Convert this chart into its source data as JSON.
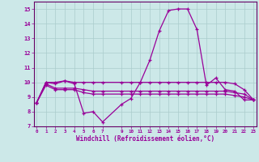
{
  "xlabel": "Windchill (Refroidissement éolien,°C)",
  "line_color": "#990099",
  "bg_color": "#cce8e8",
  "grid_color": "#aacccc",
  "axis_color": "#660066",
  "tick_color": "#990099",
  "xlim_min": -0.3,
  "xlim_max": 23.3,
  "ylim_min": 7,
  "ylim_max": 15.5,
  "yticks": [
    7,
    8,
    9,
    10,
    11,
    12,
    13,
    14,
    15
  ],
  "x": [
    0,
    1,
    2,
    3,
    4,
    5,
    6,
    7,
    9,
    10,
    11,
    12,
    13,
    14,
    15,
    16,
    17,
    18,
    19,
    20,
    21,
    22,
    23
  ],
  "y_main": [
    8.6,
    10.0,
    9.9,
    10.1,
    9.9,
    7.9,
    8.0,
    7.3,
    8.5,
    8.9,
    10.0,
    11.5,
    13.5,
    14.9,
    15.0,
    15.0,
    13.6,
    9.8,
    10.3,
    9.5,
    9.4,
    8.8,
    8.8
  ],
  "y_flat1": [
    8.6,
    10.0,
    10.0,
    10.1,
    10.0,
    10.0,
    10.0,
    10.0,
    10.0,
    10.0,
    10.0,
    10.0,
    10.0,
    10.0,
    10.0,
    10.0,
    10.0,
    10.0,
    10.0,
    10.0,
    9.9,
    9.5,
    8.8
  ],
  "y_flat2": [
    8.6,
    9.9,
    9.6,
    9.6,
    9.6,
    9.5,
    9.4,
    9.4,
    9.4,
    9.4,
    9.4,
    9.4,
    9.4,
    9.4,
    9.4,
    9.4,
    9.4,
    9.4,
    9.4,
    9.4,
    9.3,
    9.2,
    8.8
  ],
  "y_flat3": [
    8.6,
    9.8,
    9.5,
    9.5,
    9.5,
    9.3,
    9.2,
    9.2,
    9.2,
    9.2,
    9.2,
    9.2,
    9.2,
    9.2,
    9.2,
    9.2,
    9.2,
    9.2,
    9.2,
    9.2,
    9.1,
    9.0,
    8.8
  ],
  "xlabel_fontsize": 5.5,
  "ytick_fontsize": 5.0,
  "xtick_fontsize": 4.2
}
